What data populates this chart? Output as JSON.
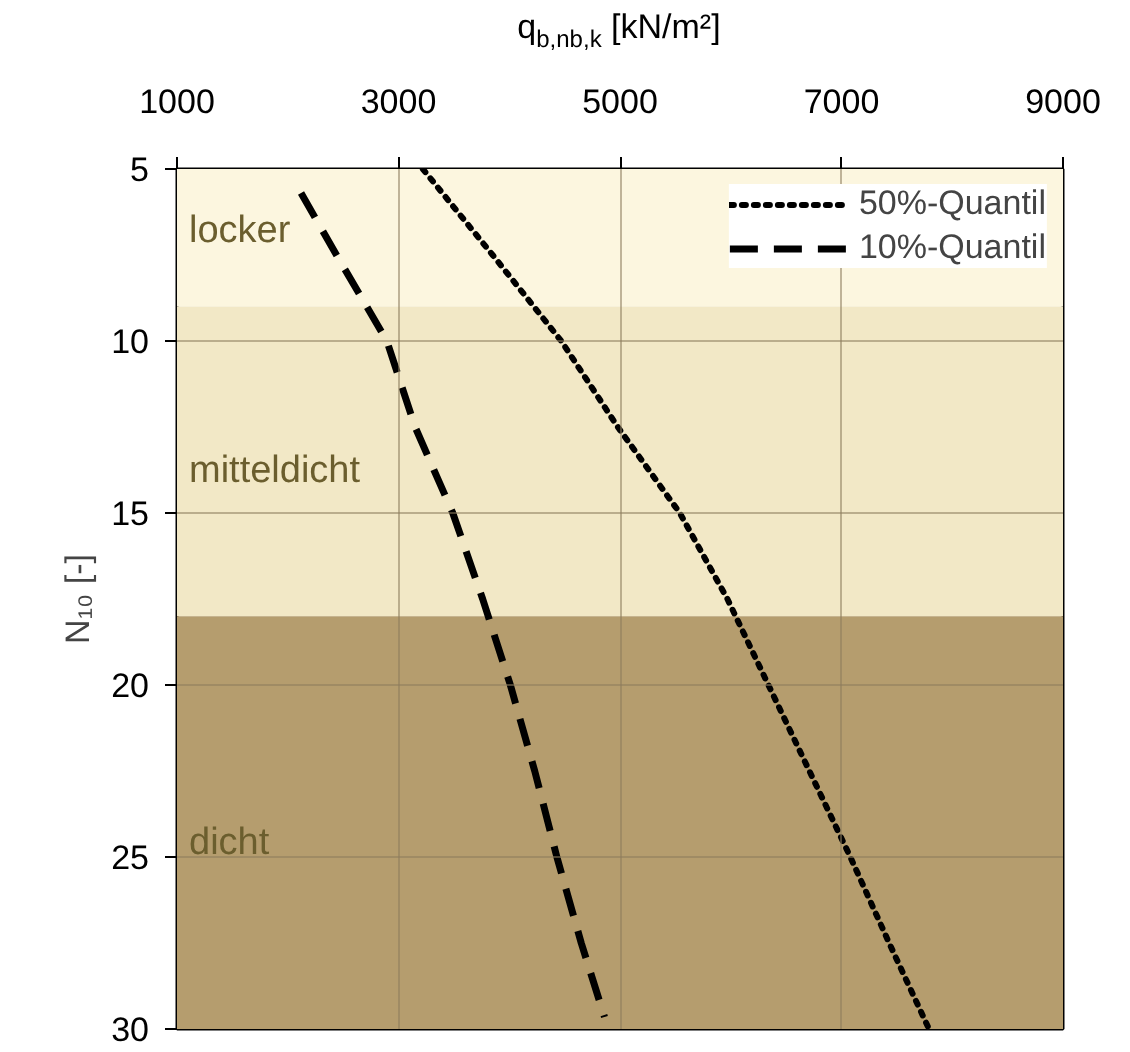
{
  "chart_data": {
    "type": "line",
    "xlabel": "q$_{b,nb,k}$ [kN/m²]",
    "ylabel": "N₁₀ [-]",
    "xlim": [
      1000,
      9000
    ],
    "xticks": [
      1000,
      3000,
      5000,
      7000,
      9000
    ],
    "ylim": [
      30,
      5
    ],
    "yticks": [
      5,
      10,
      15,
      20,
      25,
      30
    ],
    "series": [
      {
        "name": "50%-Quantil",
        "color": "#000000",
        "line_style": "dotted",
        "x": [
          3220,
          3850,
          4470,
          4980,
          5540,
          5970,
          6340,
          6710,
          7080,
          7430,
          7790
        ],
        "values": [
          5,
          7.5,
          10,
          12.5,
          15,
          17.5,
          20,
          22.5,
          25,
          27.5,
          30
        ]
      },
      {
        "name": "10%-Quantil",
        "color": "#000000",
        "line_style": "dashed",
        "x": [
          2120,
          2440,
          2895,
          3150,
          3490,
          3760,
          4010,
          4230,
          4430,
          4650,
          4860
        ],
        "values": [
          5.7,
          7.5,
          10,
          12.5,
          15,
          17.5,
          20,
          22.5,
          25,
          27.5,
          29.65
        ]
      }
    ],
    "bands": [
      {
        "axis": "y",
        "from": 5,
        "to": 9,
        "label": "locker",
        "color": "#fcf6df"
      },
      {
        "axis": "y",
        "from": 9,
        "to": 18,
        "label": "mitteldicht",
        "color": "#f2e8c6"
      },
      {
        "axis": "y",
        "from": 18,
        "to": 30,
        "label": "dicht",
        "color": "#b59d6e"
      }
    ],
    "grid": true,
    "legend": "top right"
  }
}
